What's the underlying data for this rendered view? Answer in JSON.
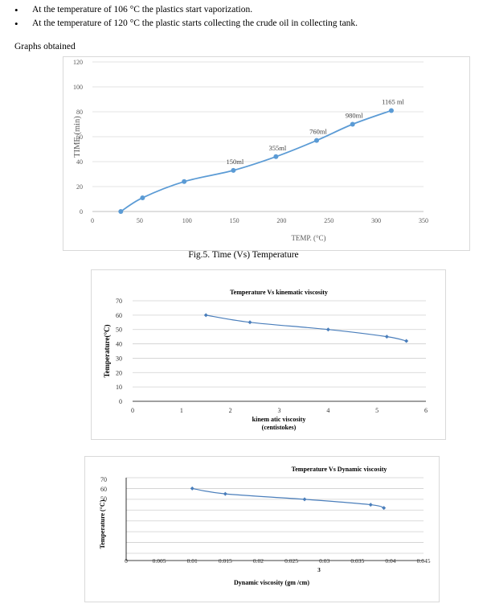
{
  "bullets": [
    "At the temperature of 106 °C the plastics start vaporization.",
    "At the temperature of 120 °C the plastic starts collecting the crude oil in collecting tank."
  ],
  "section_heading": "Graphs obtained",
  "figure_caption": "Fig.5.  Time (Vs) Temperature",
  "chart_data": [
    {
      "type": "line",
      "title": "",
      "xlabel": "TEMP. (°C)",
      "ylabel": "TIME (min)",
      "xlim": [
        0,
        350
      ],
      "ylim": [
        0,
        120
      ],
      "xticks": [
        "0",
        "50",
        "100",
        "150",
        "200",
        "250",
        "300",
        "350"
      ],
      "yticks": [
        "0",
        "20",
        "40",
        "60",
        "80",
        "100",
        "120"
      ],
      "x": [
        30,
        53,
        97,
        149,
        194,
        237,
        275,
        316
      ],
      "y": [
        0,
        11,
        24,
        33,
        44,
        57,
        70,
        81
      ],
      "point_labels": [
        "",
        "",
        "",
        "150ml",
        "355ml",
        "760ml",
        "980ml",
        "1165 ml"
      ],
      "grid": true,
      "color": "#5b9bd5"
    },
    {
      "type": "line",
      "title": "Temperature  Vs  kinematic  viscosity",
      "xlabel": "kinem atic  viscosity\n(centistokes)",
      "ylabel": "Temperature(°C)",
      "xlim": [
        0,
        6
      ],
      "ylim": [
        0,
        70
      ],
      "xticks": [
        "0",
        "1",
        "2",
        "3",
        "4",
        "5",
        "6"
      ],
      "yticks": [
        "0",
        "10",
        "20",
        "30",
        "40",
        "50",
        "60",
        "70"
      ],
      "x": [
        1.5,
        2.4,
        4.0,
        5.2,
        5.6
      ],
      "y": [
        60,
        55,
        50,
        45,
        42
      ],
      "grid": true,
      "color": "#4a7ebb"
    },
    {
      "type": "line",
      "title": "Temperature Vs Dynamic viscosity",
      "xlabel": "Dynamic viscosity (gm /cm)",
      "xlabel_superscript": "3",
      "ylabel": "Temperature (°C)",
      "xlim": [
        0,
        0.045
      ],
      "ylim": [
        0,
        70
      ],
      "xticks": [
        "0",
        "0.005",
        "0.01",
        "0.015",
        "0.02",
        "0.025",
        "0.03",
        "0.035",
        "0.04",
        "0.045"
      ],
      "yticks": [
        "70",
        "60",
        "50"
      ],
      "x": [
        0.01,
        0.015,
        0.027,
        0.037,
        0.039
      ],
      "y": [
        60,
        55,
        50,
        45,
        42
      ],
      "grid": true,
      "color": "#4a7ebb"
    }
  ]
}
